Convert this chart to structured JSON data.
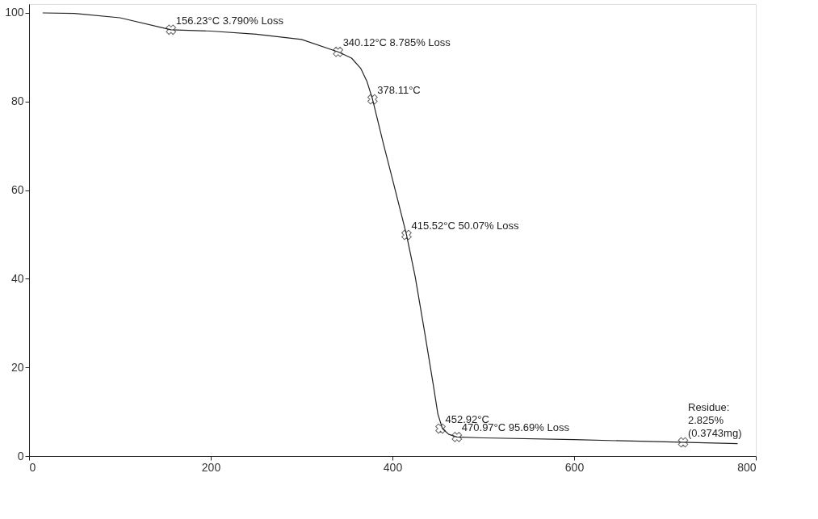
{
  "chart_data": {
    "type": "line",
    "x": [
      15,
      50,
      100,
      156.23,
      200,
      250,
      300,
      340.12,
      355,
      365,
      372,
      378.11,
      390,
      400,
      415.52,
      425,
      435,
      445,
      450,
      455,
      462,
      470.97,
      500,
      600,
      700,
      780
    ],
    "series": [
      {
        "color": "#222222",
        "values": [
          100,
          99.9,
          98.9,
          96.2,
          95.9,
          95.2,
          94.0,
          91.2,
          89.8,
          87.5,
          84.5,
          80.5,
          70.5,
          62.5,
          49.9,
          40.5,
          28.5,
          16,
          9.5,
          6.2,
          4.9,
          4.3,
          4.1,
          3.7,
          3.2,
          2.8
        ]
      }
    ],
    "xlim": [
      0,
      800
    ],
    "ylim": [
      0,
      102
    ],
    "xticks": [
      0,
      200,
      400,
      600,
      800
    ],
    "yticks": [
      0,
      20,
      40,
      60,
      80,
      100
    ],
    "grid": false,
    "marker": "none",
    "line_style": "solid",
    "annotations": [
      {
        "text": "156.23°C 3.790% Loss",
        "x": 156.23,
        "y": 96.2
      },
      {
        "text": "340.12°C 8.785% Loss",
        "x": 340.12,
        "y": 91.2
      },
      {
        "text": "378.11°C",
        "x": 378.11,
        "y": 80.5
      },
      {
        "text": "415.52°C 50.07% Loss",
        "x": 415.52,
        "y": 49.9
      },
      {
        "text": "452.92°C",
        "x": 452.92,
        "y": 6.2
      },
      {
        "text": "470.97°C 95.69% Loss",
        "x": 470.97,
        "y": 4.3
      },
      {
        "text": "Residue:\n2.825%\n(0.3743mg)",
        "x": 720,
        "y": 3.1
      }
    ]
  }
}
